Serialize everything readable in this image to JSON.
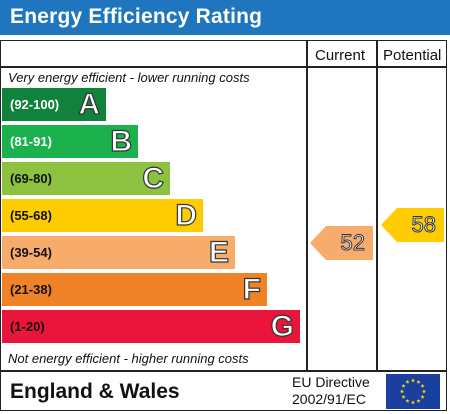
{
  "title": "Energy Efficiency Rating",
  "columns": {
    "current": "Current",
    "potential": "Potential"
  },
  "notes": {
    "top": "Very energy efficient - lower running costs",
    "bottom": "Not energy efficient - higher running costs"
  },
  "bands": [
    {
      "range": "(92-100)",
      "letter": "A",
      "color": "#10823c",
      "range_color": "#ffffff"
    },
    {
      "range": "(81-91)",
      "letter": "B",
      "color": "#1bb14d",
      "range_color": "#ffffff"
    },
    {
      "range": "(69-80)",
      "letter": "C",
      "color": "#8cc23f",
      "range_color": "#111111"
    },
    {
      "range": "(55-68)",
      "letter": "D",
      "color": "#fecc00",
      "range_color": "#111111"
    },
    {
      "range": "(39-54)",
      "letter": "E",
      "color": "#f7ac6b",
      "range_color": "#111111"
    },
    {
      "range": "(21-38)",
      "letter": "F",
      "color": "#f08228",
      "range_color": "#111111"
    },
    {
      "range": "(1-20)",
      "letter": "G",
      "color": "#e9153b",
      "range_color": "#111111"
    }
  ],
  "current_rating": {
    "value": "52",
    "band": "E",
    "color": "#f7ac6b"
  },
  "potential_rating": {
    "value": "58",
    "band": "D",
    "color": "#fecc00"
  },
  "footer": {
    "region": "England & Wales",
    "directive_line1": "EU Directive",
    "directive_line2": "2002/91/EC",
    "flag_color": "#1a3f9e",
    "star_color": "#ffdd00"
  }
}
